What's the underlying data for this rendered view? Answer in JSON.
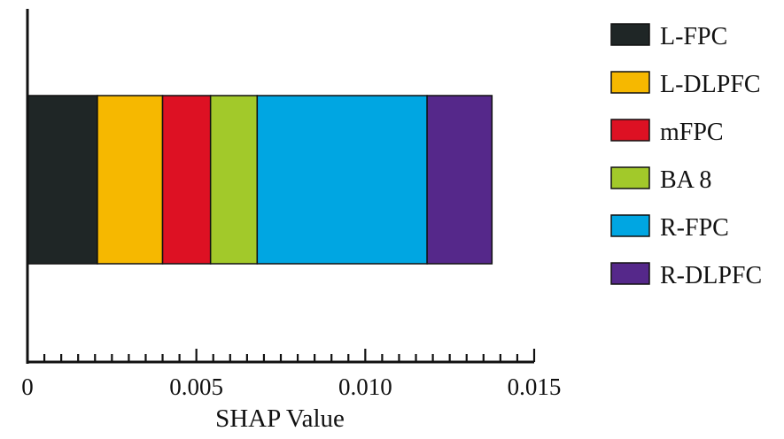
{
  "chart_data": {
    "type": "bar",
    "orientation": "horizontal",
    "stacked": true,
    "title": "",
    "xlabel": "SHAP Value",
    "ylabel": "",
    "xlim": [
      0,
      0.015
    ],
    "xticks": [
      0,
      0.005,
      0.01,
      0.015
    ],
    "xtick_labels": [
      "0",
      "0.005",
      "0.010",
      "0.015"
    ],
    "minor_tick_step": 0.0005,
    "grid": false,
    "legend_position": "right",
    "series": [
      {
        "name": "L-FPC",
        "value": 0.00207,
        "color": "#1f2626"
      },
      {
        "name": "L-DLPFC",
        "value": 0.00193,
        "color": "#f6b800"
      },
      {
        "name": "mFPC",
        "value": 0.00142,
        "color": "#dd1123"
      },
      {
        "name": "BA 8",
        "value": 0.00138,
        "color": "#a2c92a"
      },
      {
        "name": "R-FPC",
        "value": 0.00503,
        "color": "#00a6e2"
      },
      {
        "name": "R-DLPFC",
        "value": 0.00192,
        "color": "#55288a"
      }
    ]
  }
}
